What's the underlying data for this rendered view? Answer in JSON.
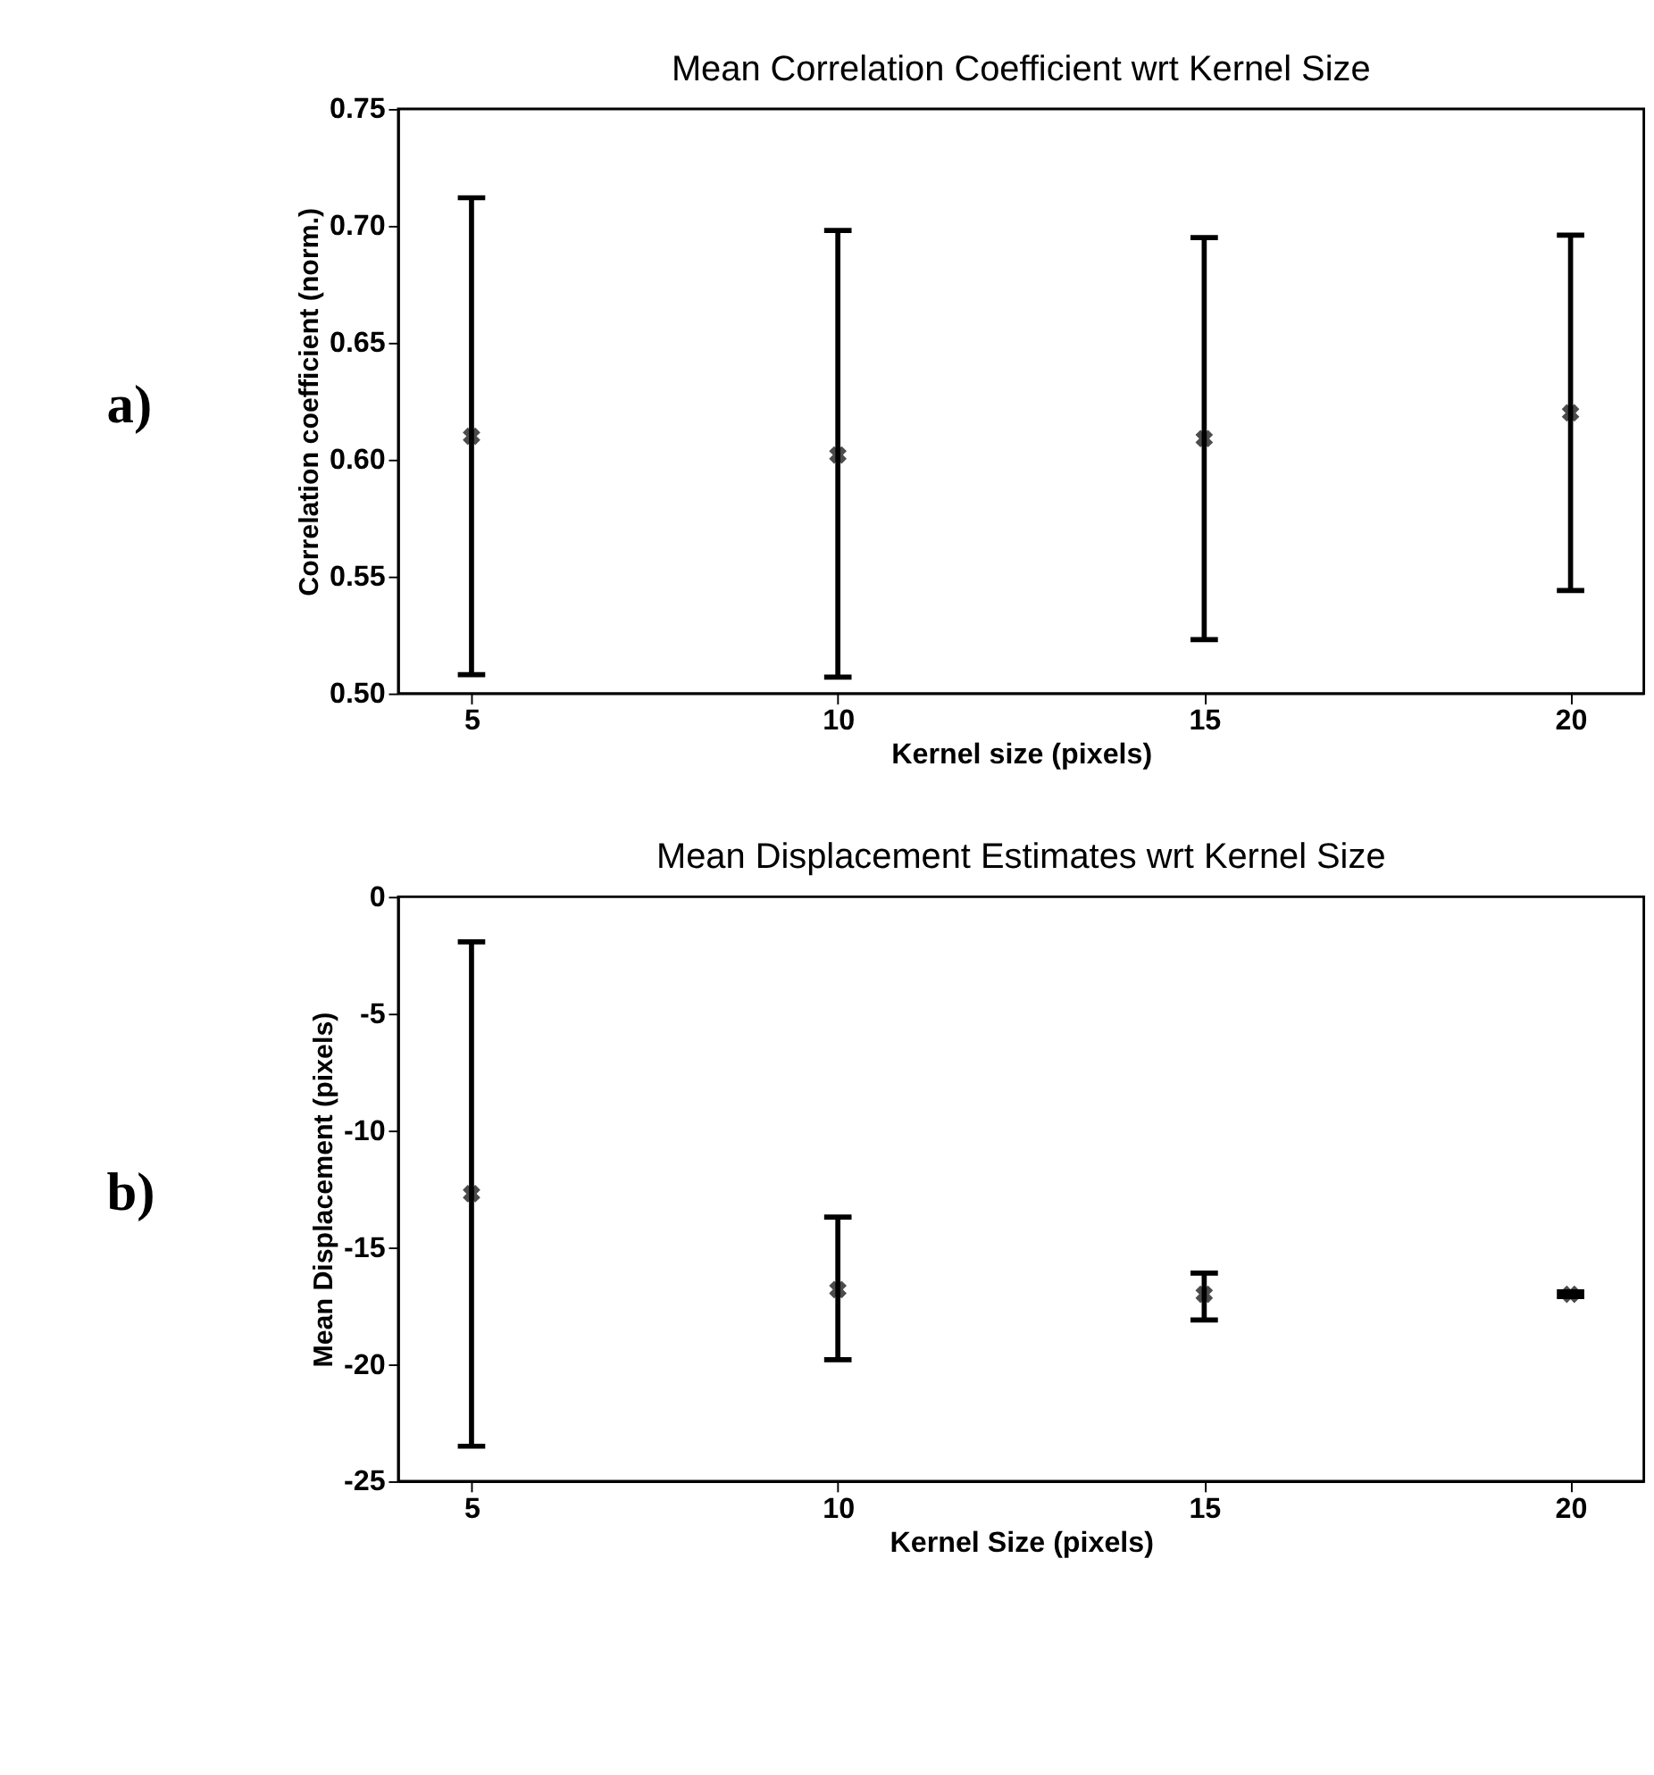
{
  "chart_data": [
    {
      "type": "scatter",
      "title": "Mean Correlation Coefficient wrt Kernel Size",
      "xlabel": "Kernel size (pixels)",
      "ylabel": "Correlation coefficient (norm.)",
      "annotations": [
        "a)"
      ],
      "x": [
        5,
        10,
        15,
        20
      ],
      "values": [
        0.61,
        0.602,
        0.609,
        0.62
      ],
      "errors": [
        [
          0.508,
          0.712
        ],
        [
          0.507,
          0.698
        ],
        [
          0.523,
          0.695
        ],
        [
          0.544,
          0.696
        ]
      ],
      "color": "#000000",
      "marker": "cross",
      "xlim": [
        4,
        21
      ],
      "xticks": [
        5,
        10,
        15,
        20
      ],
      "ylim": [
        0.5,
        0.75
      ],
      "yticks": [
        {
          "value": 0.5,
          "label": "0.50"
        },
        0.55,
        {
          "value": 0.6,
          "label": "0.60"
        },
        0.65,
        {
          "value": 0.7,
          "label": "0.70"
        },
        0.75
      ],
      "grid": false
    },
    {
      "type": "scatter",
      "title": "Mean Displacement Estimates wrt Kernel Size",
      "xlabel": "Kernel Size (pixels)",
      "ylabel": "Mean Displacement (pixels)",
      "annotations": [
        "b)"
      ],
      "x": [
        5,
        10,
        15,
        20
      ],
      "values": [
        -12.7,
        -16.8,
        -17.0,
        -17.0
      ],
      "errors": [
        [
          -23.5,
          -1.93
        ],
        [
          -19.8,
          -13.7
        ],
        [
          -18.1,
          -16.1
        ],
        [
          -17.1,
          -16.9
        ]
      ],
      "color": "#000000",
      "marker": "cross",
      "xlim": [
        4,
        21
      ],
      "xticks": [
        5,
        10,
        15,
        20
      ],
      "ylim": [
        -25,
        0
      ],
      "yticks": [
        -25,
        -20,
        -15,
        -10,
        -5,
        0
      ],
      "grid": false
    }
  ]
}
